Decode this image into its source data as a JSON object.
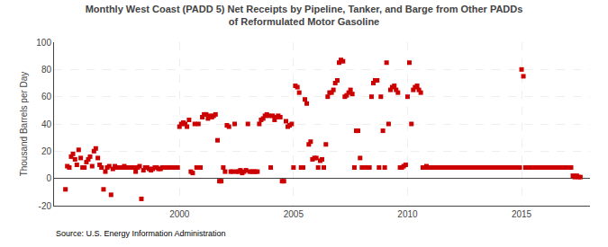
{
  "chart_data": {
    "type": "scatter",
    "title": "Monthly West Coast (PADD 5) Net Receipts by Pipeline, Tanker, and Barge from Other PADDs\nof Reformulated Motor Gasoline",
    "ylabel": "Thousand Barrels per Day",
    "annotations": [
      "Source: U.S. Energy Information Administration"
    ],
    "color": "#cc0000",
    "marker": "square",
    "grid": true,
    "xlim": [
      1994.5,
      2018.0
    ],
    "ylim": [
      -20,
      100
    ],
    "xticks": [
      2000,
      2005,
      2010,
      2015
    ],
    "yticks": [
      -20,
      0,
      20,
      40,
      60,
      80,
      100
    ],
    "x": [
      1995.0,
      1995.08,
      1995.17,
      1995.25,
      1995.33,
      1995.42,
      1995.5,
      1995.58,
      1995.67,
      1995.75,
      1995.83,
      1995.92,
      1996.0,
      1996.08,
      1996.17,
      1996.25,
      1996.33,
      1996.42,
      1996.5,
      1996.58,
      1996.67,
      1996.75,
      1996.83,
      1996.92,
      1997.0,
      1997.08,
      1997.17,
      1997.25,
      1997.33,
      1997.42,
      1997.5,
      1997.58,
      1997.67,
      1997.75,
      1997.83,
      1997.92,
      1998.0,
      1998.08,
      1998.17,
      1998.25,
      1998.33,
      1998.42,
      1998.5,
      1998.58,
      1998.67,
      1998.75,
      1998.83,
      1998.92,
      1999.0,
      1999.08,
      1999.17,
      1999.25,
      1999.33,
      1999.42,
      1999.5,
      1999.58,
      1999.67,
      1999.75,
      1999.83,
      1999.92,
      2000.0,
      2000.08,
      2000.17,
      2000.25,
      2000.33,
      2000.42,
      2000.5,
      2000.58,
      2000.67,
      2000.75,
      2000.83,
      2000.92,
      2001.0,
      2001.08,
      2001.17,
      2001.25,
      2001.33,
      2001.42,
      2001.5,
      2001.58,
      2001.67,
      2001.75,
      2001.83,
      2001.92,
      2002.0,
      2002.08,
      2002.17,
      2002.25,
      2002.33,
      2002.42,
      2002.5,
      2002.58,
      2002.67,
      2002.75,
      2002.83,
      2002.92,
      2003.0,
      2003.08,
      2003.17,
      2003.25,
      2003.33,
      2003.42,
      2003.5,
      2003.58,
      2003.67,
      2003.75,
      2003.83,
      2003.92,
      2004.0,
      2004.08,
      2004.17,
      2004.25,
      2004.33,
      2004.42,
      2004.5,
      2004.58,
      2004.67,
      2004.75,
      2004.83,
      2004.92,
      2005.0,
      2005.08,
      2005.17,
      2005.25,
      2005.33,
      2005.42,
      2005.5,
      2005.58,
      2005.67,
      2005.75,
      2005.83,
      2005.92,
      2006.0,
      2006.08,
      2006.17,
      2006.25,
      2006.33,
      2006.42,
      2006.5,
      2006.58,
      2006.67,
      2006.75,
      2006.83,
      2006.92,
      2007.0,
      2007.08,
      2007.17,
      2007.25,
      2007.33,
      2007.42,
      2007.5,
      2007.58,
      2007.67,
      2007.75,
      2007.83,
      2007.92,
      2008.0,
      2008.08,
      2008.17,
      2008.25,
      2008.33,
      2008.42,
      2008.5,
      2008.58,
      2008.67,
      2008.75,
      2008.83,
      2008.92,
      2009.0,
      2009.08,
      2009.17,
      2009.25,
      2009.33,
      2009.42,
      2009.5,
      2009.58,
      2009.67,
      2009.75,
      2009.83,
      2009.92,
      2010.0,
      2010.08,
      2010.17,
      2010.25,
      2010.33,
      2010.42,
      2010.5,
      2010.58,
      2010.67,
      2010.75,
      2010.83,
      2010.92,
      2011.0,
      2011.08,
      2011.17,
      2011.25,
      2011.33,
      2011.42,
      2011.5,
      2011.58,
      2011.67,
      2011.75,
      2011.83,
      2011.92,
      2012.0,
      2012.08,
      2012.17,
      2012.25,
      2012.33,
      2012.42,
      2012.5,
      2012.58,
      2012.67,
      2012.75,
      2012.83,
      2012.92,
      2013.0,
      2013.08,
      2013.17,
      2013.25,
      2013.33,
      2013.42,
      2013.5,
      2013.58,
      2013.67,
      2013.75,
      2013.83,
      2013.92,
      2014.0,
      2014.08,
      2014.17,
      2014.25,
      2014.33,
      2014.42,
      2014.5,
      2014.58,
      2014.67,
      2014.75,
      2014.83,
      2014.92,
      2015.0,
      2015.08,
      2015.17,
      2015.25,
      2015.33,
      2015.42,
      2015.5,
      2015.58,
      2015.67,
      2015.75,
      2015.83,
      2015.92,
      2016.0,
      2016.08,
      2016.17,
      2016.25,
      2016.33,
      2016.42,
      2016.5,
      2016.58,
      2016.67,
      2016.75,
      2016.83,
      2016.92,
      2017.0,
      2017.08,
      2017.17,
      2017.25,
      2017.33,
      2017.42,
      2017.5,
      2017.58
    ],
    "values": [
      -8,
      9,
      8,
      16,
      18,
      14,
      10,
      21,
      15,
      8,
      8,
      12,
      14,
      16,
      9,
      20,
      22,
      15,
      10,
      8,
      -8,
      5,
      8,
      9,
      -12,
      7,
      9,
      8,
      8,
      8,
      8,
      9,
      8,
      8,
      8,
      8,
      8,
      5,
      8,
      9,
      -15,
      6,
      8,
      8,
      7,
      6,
      7,
      8,
      8,
      7,
      7,
      8,
      8,
      8,
      8,
      8,
      8,
      8,
      8,
      8,
      38,
      40,
      41,
      40,
      38,
      43,
      5,
      4,
      40,
      8,
      40,
      8,
      45,
      47,
      47,
      44,
      46,
      45,
      46,
      47,
      28,
      -2,
      -2,
      8,
      5,
      39,
      38,
      5,
      5,
      40,
      5,
      5,
      6,
      4,
      5,
      6,
      40,
      5,
      5,
      5,
      5,
      5,
      40,
      43,
      44,
      46,
      47,
      46,
      8,
      46,
      43,
      45,
      46,
      45,
      -2,
      -2,
      42,
      38,
      39,
      40,
      8,
      68,
      67,
      63,
      8,
      8,
      58,
      55,
      25,
      27,
      14,
      15,
      15,
      8,
      13,
      14,
      8,
      25,
      60,
      63,
      63,
      65,
      70,
      72,
      85,
      87,
      86,
      60,
      61,
      63,
      65,
      62,
      8,
      35,
      35,
      15,
      8,
      8,
      8,
      8,
      8,
      60,
      70,
      72,
      72,
      8,
      60,
      35,
      8,
      85,
      40,
      65,
      67,
      68,
      65,
      63,
      8,
      8,
      9,
      10,
      60,
      85,
      40,
      65,
      67,
      68,
      65,
      63,
      8,
      8,
      9,
      8,
      8,
      8,
      8,
      8,
      8,
      8,
      8,
      8,
      8,
      8,
      8,
      8,
      8,
      8,
      8,
      8,
      8,
      8,
      8,
      8,
      8,
      8,
      8,
      8,
      8,
      8,
      8,
      8,
      8,
      8,
      8,
      8,
      8,
      8,
      8,
      8,
      8,
      8,
      8,
      8,
      8,
      8,
      8,
      8,
      8,
      8,
      8,
      8,
      80,
      75,
      8,
      8,
      8,
      8,
      8,
      8,
      8,
      8,
      8,
      8,
      8,
      8,
      8,
      8,
      8,
      8,
      8,
      8,
      8,
      8,
      8,
      8,
      8,
      8,
      8,
      2,
      1,
      2,
      1,
      1
    ]
  }
}
